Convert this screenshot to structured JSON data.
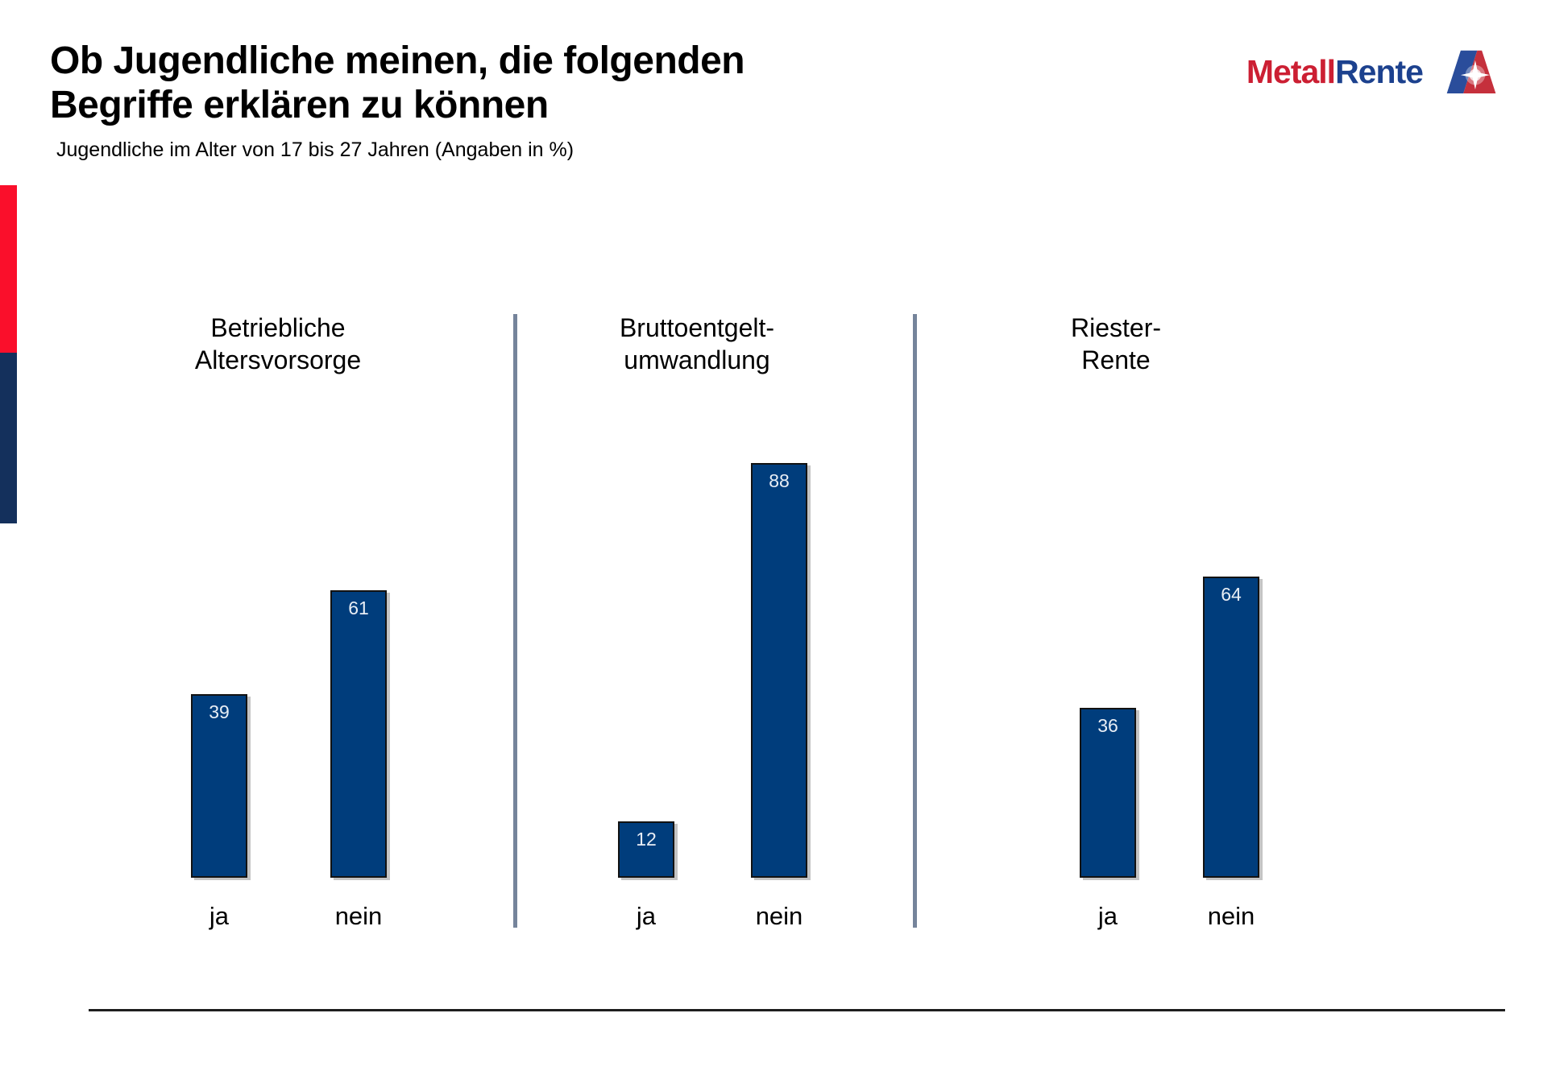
{
  "slide": {
    "title_line1": "Ob Jugendliche meinen, die folgenden",
    "title_line2": "Begriffe erklären zu können",
    "subtitle": "Jugendliche im Alter von 17 bis 27 Jahren (Angaben in %)"
  },
  "logo": {
    "part1": "Metall",
    "part2": "Rente",
    "part1_color": "#cc1f33",
    "part2_color": "#1c418e",
    "mark_blue": "#2a4d9b",
    "mark_red": "#c5303c"
  },
  "accents": {
    "red": "#fa0f2b",
    "navy": "#14305c",
    "divider": "#75849b"
  },
  "chart_data": {
    "type": "bar",
    "title": "Ob Jugendliche meinen, die folgenden Begriffe erklären zu können",
    "subtitle": "Jugendliche im Alter von 17 bis 27 Jahren (Angaben in %)",
    "unit": "%",
    "categories": [
      "ja",
      "nein"
    ],
    "groups": [
      {
        "label_line1": "Betriebliche",
        "label_line2": "Altersvorsorge",
        "values": {
          "ja": 39,
          "nein": 61
        }
      },
      {
        "label_line1": "Bruttoentgelt-",
        "label_line2": "umwandlung",
        "values": {
          "ja": 12,
          "nein": 88
        }
      },
      {
        "label_line1": "Riester-",
        "label_line2": "Rente",
        "values": {
          "ja": 36,
          "nein": 64
        }
      }
    ],
    "bar_color": "#003d7c",
    "bar_border_color": "#121212",
    "value_label_color": "#e9eef5",
    "ylim": [
      0,
      100
    ],
    "grid": false,
    "legend": false,
    "value_labels": "inside-top"
  }
}
